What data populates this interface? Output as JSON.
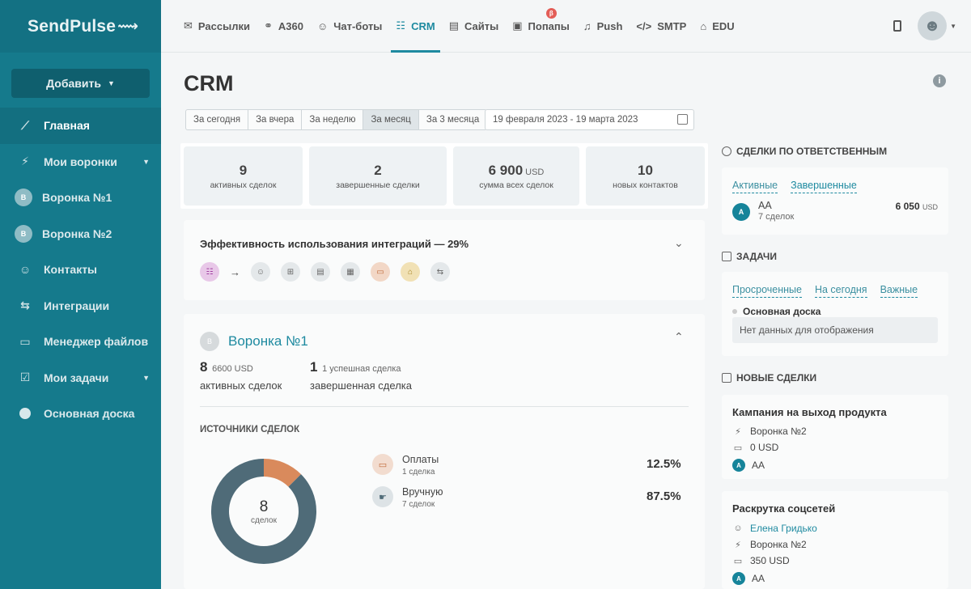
{
  "app": {
    "logo": "SendPulse",
    "logo_mark": "⟿"
  },
  "sidebar": {
    "add_button": "Добавить",
    "items": [
      {
        "label": "Главная",
        "icon": "trend-icon",
        "glyph": "⟋"
      },
      {
        "label": "Мои воронки",
        "icon": "funnel-icon",
        "glyph": "⚡"
      },
      {
        "label": "Воронка №1",
        "icon": "avatar",
        "glyph": "В"
      },
      {
        "label": "Воронка №2",
        "icon": "avatar",
        "glyph": "В"
      },
      {
        "label": "Контакты",
        "icon": "contacts-icon",
        "glyph": "☺"
      },
      {
        "label": "Интеграции",
        "icon": "integrations-icon",
        "glyph": "⇆"
      },
      {
        "label": "Менеджер файлов",
        "icon": "folder-icon",
        "glyph": "▭"
      },
      {
        "label": "Мои задачи",
        "icon": "tasks-icon",
        "glyph": "☑"
      },
      {
        "label": "Основная доска",
        "icon": "board-dot",
        "glyph": ""
      }
    ]
  },
  "topnav": [
    {
      "label": "Рассылки",
      "glyph": "✉"
    },
    {
      "label": "A360",
      "glyph": "⚭"
    },
    {
      "label": "Чат-боты",
      "glyph": "☺"
    },
    {
      "label": "CRM",
      "glyph": "☷"
    },
    {
      "label": "Сайты",
      "glyph": "▤"
    },
    {
      "label": "Попапы",
      "glyph": "▣",
      "badge": "β"
    },
    {
      "label": "Push",
      "glyph": "♫"
    },
    {
      "label": "SMTP",
      "glyph": "</>"
    },
    {
      "label": "EDU",
      "glyph": "⌂"
    }
  ],
  "page": {
    "title": "CRM",
    "periods": [
      "За сегодня",
      "За вчера",
      "За неделю",
      "За месяц",
      "За 3 месяца"
    ],
    "date_range": "19 февраля 2023 - 19 марта 2023"
  },
  "stats": [
    {
      "value": "9",
      "unit": "",
      "label": "активных сделок"
    },
    {
      "value": "2",
      "unit": "",
      "label": "завершенные сделки"
    },
    {
      "value": "6 900",
      "unit": "USD",
      "label": "сумма всех сделок"
    },
    {
      "value": "10",
      "unit": "",
      "label": "новых контактов"
    }
  ],
  "efficiency": {
    "title": "Эффективность использования интеграций — 29%",
    "arrow": "→"
  },
  "funnel": {
    "name": "Воронка №1",
    "avatar": "В",
    "active_count": "8",
    "active_amount": "6600 USD",
    "active_label": "активных сделок",
    "done_count": "1",
    "done_note": "1 успешная сделка",
    "done_label": "завершенная сделка",
    "sources_title": "ИСТОЧНИКИ СДЕЛОК",
    "donut_total": "8",
    "donut_label": "сделок",
    "sources": [
      {
        "name": "Оплаты",
        "count": "1 сделка",
        "percent": "12.5%",
        "value": 12.5,
        "color": "#d98a5c"
      },
      {
        "name": "Вручную",
        "count": "7 сделок",
        "percent": "87.5%",
        "value": 87.5,
        "color": "#4f6b78"
      }
    ]
  },
  "right": {
    "responsible_title": "СДЕЛКИ ПО ОТВЕТСТВЕННЫМ",
    "responsible_tabs": [
      "Активные",
      "Завершенные"
    ],
    "responsible_person": {
      "initial": "A",
      "name": "AA",
      "deals": "7 сделок",
      "amount": "6 050",
      "currency": "USD"
    },
    "tasks_title": "ЗАДАЧИ",
    "tasks_tabs": [
      "Просроченные",
      "На сегодня",
      "Важные"
    ],
    "tasks_board": "Основная доска",
    "tasks_empty": "Нет данных для отображения",
    "new_deals_title": "НОВЫЕ СДЕЛКИ",
    "deals": [
      {
        "title": "Кампания на выход продукта",
        "funnel": "Воронка №2",
        "amount": "0 USD",
        "owner": "AA"
      },
      {
        "title": "Раскрутка соцсетей",
        "contact": "Елена Гридько",
        "funnel": "Воронка №2",
        "amount": "350 USD",
        "owner": "AA"
      }
    ]
  }
}
